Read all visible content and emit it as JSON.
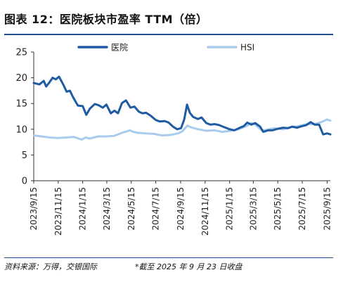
{
  "figure": {
    "title": "图表 12：医院板块市盈率 TTM（倍）",
    "source": "资料来源：万得，交银国际",
    "note": "*截至 2025 年 9 月 23 日收盘"
  },
  "colors": {
    "hospital": "#1f5ba3",
    "hsi": "#a9ccec",
    "rule": "#1f4e8c"
  },
  "chart_data": {
    "type": "line",
    "title": "",
    "xlabel": "",
    "ylabel": "",
    "ylim": [
      0,
      25
    ],
    "yticks": [
      0,
      5,
      10,
      15,
      20,
      25
    ],
    "x_range": [
      "2023-09-15",
      "2025-09-23"
    ],
    "xtick_labels": [
      "2023/9/15",
      "2023/11/15",
      "2024/1/15",
      "2024/3/15",
      "2024/5/15",
      "2024/7/15",
      "2024/9/15",
      "2024/11/15",
      "2025/1/15",
      "2025/3/15",
      "2025/5/15",
      "2025/7/15",
      "2025/9/15"
    ],
    "xtick_dates": [
      "2023-09-15",
      "2023-11-15",
      "2024-01-15",
      "2024-03-15",
      "2024-05-15",
      "2024-07-15",
      "2024-09-15",
      "2024-11-15",
      "2025-01-15",
      "2025-03-15",
      "2025-05-15",
      "2025-07-15",
      "2025-09-15"
    ],
    "grid": false,
    "legend_position": "top",
    "series": [
      {
        "name": "医院",
        "x": [
          "2023-09-15",
          "2023-09-29",
          "2023-10-10",
          "2023-10-16",
          "2023-10-24",
          "2023-11-01",
          "2023-11-09",
          "2023-11-17",
          "2023-11-28",
          "2023-12-06",
          "2023-12-14",
          "2023-12-22",
          "2024-01-03",
          "2024-01-15",
          "2024-01-24",
          "2024-02-02",
          "2024-02-14",
          "2024-02-23",
          "2024-03-05",
          "2024-03-14",
          "2024-03-25",
          "2024-04-03",
          "2024-04-12",
          "2024-04-22",
          "2024-05-02",
          "2024-05-13",
          "2024-05-23",
          "2024-06-03",
          "2024-06-12",
          "2024-06-21",
          "2024-07-03",
          "2024-07-15",
          "2024-07-25",
          "2024-08-06",
          "2024-08-16",
          "2024-08-27",
          "2024-09-06",
          "2024-09-16",
          "2024-09-24",
          "2024-10-01",
          "2024-10-08",
          "2024-10-16",
          "2024-10-28",
          "2024-11-06",
          "2024-11-18",
          "2024-11-28",
          "2024-12-09",
          "2024-12-20",
          "2025-01-02",
          "2025-01-15",
          "2025-01-27",
          "2025-02-07",
          "2025-02-19",
          "2025-02-28",
          "2025-03-10",
          "2025-03-20",
          "2025-04-01",
          "2025-04-09",
          "2025-04-21",
          "2025-05-02",
          "2025-05-15",
          "2025-05-28",
          "2025-06-09",
          "2025-06-20",
          "2025-07-02",
          "2025-07-14",
          "2025-07-25",
          "2025-08-05",
          "2025-08-15",
          "2025-08-26",
          "2025-09-05",
          "2025-09-15",
          "2025-09-23"
        ],
        "y": [
          19.0,
          18.7,
          19.4,
          18.3,
          19.1,
          20.0,
          19.7,
          20.2,
          18.6,
          17.3,
          17.5,
          16.2,
          14.6,
          14.5,
          12.8,
          14.0,
          14.9,
          14.7,
          14.2,
          14.8,
          13.1,
          13.6,
          13.1,
          15.1,
          15.6,
          14.2,
          14.4,
          13.4,
          13.1,
          13.2,
          12.6,
          11.8,
          11.5,
          11.6,
          11.3,
          10.5,
          10.0,
          10.2,
          11.9,
          14.8,
          13.2,
          12.4,
          12.0,
          12.3,
          11.2,
          10.9,
          11.0,
          10.8,
          10.4,
          10.0,
          9.8,
          10.2,
          10.6,
          11.3,
          10.9,
          11.2,
          10.5,
          9.5,
          9.8,
          9.8,
          10.1,
          10.3,
          10.2,
          10.5,
          10.3,
          10.6,
          10.8,
          11.4,
          10.9,
          10.9,
          9.0,
          9.2,
          9.0
        ]
      },
      {
        "name": "HSI",
        "x": [
          "2023-09-15",
          "2023-10-05",
          "2023-10-25",
          "2023-11-14",
          "2023-12-04",
          "2023-12-24",
          "2024-01-13",
          "2024-01-22",
          "2024-02-02",
          "2024-02-22",
          "2024-03-13",
          "2024-04-02",
          "2024-04-22",
          "2024-05-12",
          "2024-05-20",
          "2024-06-01",
          "2024-06-21",
          "2024-07-11",
          "2024-07-31",
          "2024-08-20",
          "2024-09-09",
          "2024-09-19",
          "2024-10-02",
          "2024-10-10",
          "2024-10-29",
          "2024-11-18",
          "2024-12-08",
          "2024-12-28",
          "2025-01-17",
          "2025-02-06",
          "2025-02-26",
          "2025-03-10",
          "2025-03-18",
          "2025-04-07",
          "2025-04-17",
          "2025-05-07",
          "2025-05-27",
          "2025-06-16",
          "2025-07-06",
          "2025-07-26",
          "2025-08-15",
          "2025-09-04",
          "2025-09-14",
          "2025-09-23"
        ],
        "y": [
          8.8,
          8.6,
          8.4,
          8.3,
          8.4,
          8.5,
          8.0,
          8.4,
          8.2,
          8.6,
          8.6,
          8.7,
          9.3,
          9.8,
          9.5,
          9.3,
          9.2,
          9.1,
          8.8,
          8.9,
          9.2,
          9.6,
          10.7,
          10.4,
          10.0,
          9.7,
          9.8,
          9.5,
          9.7,
          10.0,
          10.6,
          11.2,
          11.0,
          9.7,
          9.9,
          10.2,
          10.0,
          10.4,
          10.6,
          11.0,
          11.0,
          11.5,
          11.9,
          11.7
        ]
      }
    ]
  }
}
